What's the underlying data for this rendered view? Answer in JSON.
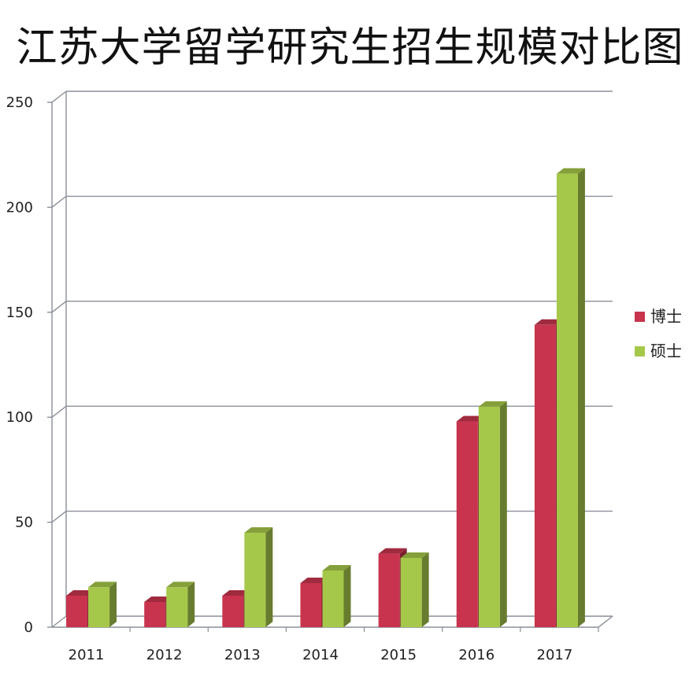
{
  "chart_data": {
    "type": "bar",
    "title": "江苏大学留学研究生招生规模对比图",
    "xlabel": "",
    "ylabel": "",
    "categories": [
      "2011",
      "2012",
      "2013",
      "2014",
      "2015",
      "2016",
      "2017"
    ],
    "series": [
      {
        "name": "博士",
        "values": [
          15,
          12,
          15,
          21,
          35,
          98,
          144
        ],
        "color": "#c8344e"
      },
      {
        "name": "硕士",
        "values": [
          19,
          19,
          45,
          27,
          33,
          105,
          216
        ],
        "color": "#a6c84a"
      }
    ],
    "ylim": [
      0,
      250
    ],
    "yticks": [
      "0",
      "50",
      "100",
      "150",
      "200",
      "250"
    ],
    "grid": true,
    "legend": "right",
    "style": "3d"
  }
}
